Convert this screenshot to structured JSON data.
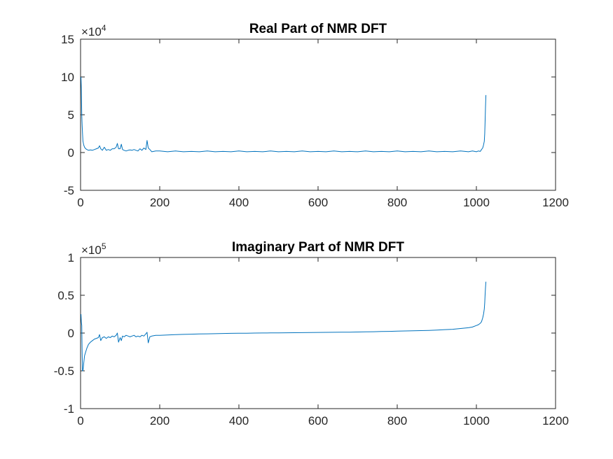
{
  "chart_data": [
    {
      "type": "line",
      "title": "Real Part of NMR DFT",
      "xlabel": "",
      "ylabel": "",
      "xlim": [
        0,
        1200
      ],
      "ylim": [
        -5,
        15
      ],
      "xticks": [
        0,
        200,
        400,
        600,
        800,
        1000,
        1200
      ],
      "yticks": [
        -5,
        0,
        5,
        10,
        15
      ],
      "exponent_base": "×10",
      "exponent_power": "4",
      "grid": false,
      "color": "#0072BD",
      "series": [
        {
          "x": [
            1,
            2,
            3,
            4,
            5,
            6,
            8,
            10,
            13,
            16,
            20,
            25,
            30,
            35,
            40,
            45,
            48,
            51,
            55,
            60,
            65,
            70,
            75,
            80,
            85,
            90,
            93,
            96,
            100,
            103,
            106,
            110,
            115,
            120,
            125,
            130,
            135,
            140,
            145,
            150,
            155,
            160,
            165,
            168,
            171,
            175,
            180,
            190,
            200,
            220,
            240,
            260,
            280,
            300,
            320,
            340,
            360,
            380,
            400,
            420,
            440,
            460,
            480,
            500,
            520,
            540,
            560,
            580,
            600,
            620,
            640,
            660,
            680,
            700,
            720,
            740,
            760,
            780,
            800,
            820,
            840,
            860,
            880,
            900,
            920,
            940,
            960,
            980,
            990,
            1000,
            1005,
            1010,
            1013,
            1016,
            1018,
            1020,
            1021,
            1022,
            1023,
            1024
          ],
          "y": [
            10,
            8.5,
            5,
            3.5,
            2.5,
            1.5,
            1,
            0.7,
            0.5,
            0.4,
            0.3,
            0.35,
            0.3,
            0.4,
            0.5,
            0.6,
            0.9,
            0.5,
            0.3,
            0.7,
            0.3,
            0.4,
            0.3,
            0.5,
            0.5,
            0.7,
            1.2,
            0.5,
            0.5,
            1.1,
            0.4,
            0.3,
            0.2,
            0.3,
            0.35,
            0.3,
            0.4,
            0.3,
            0.2,
            0.5,
            0.3,
            0.6,
            0.4,
            1.6,
            0.6,
            0.4,
            0.1,
            0.2,
            0.2,
            0.1,
            0.2,
            0.1,
            0.15,
            0.1,
            0.2,
            0.1,
            0.15,
            0.1,
            0.2,
            0.1,
            0.15,
            0.1,
            0.2,
            0.1,
            0.15,
            0.1,
            0.2,
            0.1,
            0.15,
            0.1,
            0.2,
            0.1,
            0.15,
            0.1,
            0.2,
            0.1,
            0.15,
            0.1,
            0.2,
            0.1,
            0.15,
            0.1,
            0.2,
            0.1,
            0.15,
            0.1,
            0.2,
            0.1,
            0.2,
            0.1,
            0.2,
            0.15,
            0.4,
            0.6,
            1.0,
            1.5,
            2.5,
            4.0,
            6.0,
            7.6
          ]
        }
      ]
    },
    {
      "type": "line",
      "title": "Imaginary Part of NMR DFT",
      "xlabel": "",
      "ylabel": "",
      "xlim": [
        0,
        1200
      ],
      "ylim": [
        -1,
        1
      ],
      "xticks": [
        0,
        200,
        400,
        600,
        800,
        1000,
        1200
      ],
      "yticks": [
        -1,
        -0.5,
        0,
        0.5,
        1
      ],
      "ytick_labels": [
        "-1",
        "-0.5",
        "0",
        "0.5",
        "1"
      ],
      "exponent_base": "×10",
      "exponent_power": "5",
      "grid": false,
      "color": "#0072BD",
      "series": [
        {
          "x": [
            1,
            2,
            3,
            4,
            5,
            6,
            8,
            10,
            13,
            16,
            20,
            25,
            30,
            35,
            40,
            45,
            48,
            51,
            55,
            60,
            65,
            70,
            75,
            80,
            85,
            90,
            93,
            96,
            100,
            103,
            106,
            110,
            115,
            120,
            125,
            130,
            135,
            140,
            145,
            150,
            155,
            160,
            165,
            168,
            171,
            175,
            180,
            190,
            200,
            220,
            240,
            260,
            280,
            300,
            320,
            340,
            360,
            380,
            400,
            420,
            440,
            460,
            480,
            500,
            520,
            540,
            560,
            580,
            600,
            620,
            640,
            660,
            680,
            700,
            720,
            740,
            760,
            780,
            800,
            820,
            840,
            860,
            880,
            900,
            920,
            940,
            960,
            980,
            990,
            1000,
            1005,
            1010,
            1013,
            1016,
            1018,
            1020,
            1021,
            1022,
            1023,
            1024
          ],
          "y": [
            0.25,
            0.15,
            0.1,
            -0.3,
            -0.5,
            -0.5,
            -0.4,
            -0.3,
            -0.25,
            -0.2,
            -0.15,
            -0.12,
            -0.1,
            -0.08,
            -0.07,
            -0.06,
            -0.02,
            -0.1,
            -0.06,
            -0.05,
            -0.07,
            -0.05,
            -0.06,
            -0.04,
            -0.05,
            -0.03,
            0.0,
            -0.12,
            -0.06,
            -0.1,
            -0.04,
            -0.05,
            -0.03,
            -0.04,
            -0.05,
            -0.04,
            -0.03,
            -0.05,
            -0.04,
            -0.05,
            -0.03,
            -0.04,
            -0.01,
            0.01,
            -0.13,
            -0.05,
            -0.04,
            -0.03,
            -0.03,
            -0.025,
            -0.02,
            -0.018,
            -0.015,
            -0.012,
            -0.01,
            -0.008,
            -0.006,
            -0.004,
            -0.003,
            -0.002,
            0.0,
            0.001,
            0.002,
            0.003,
            0.004,
            0.005,
            0.006,
            0.007,
            0.008,
            0.009,
            0.01,
            0.011,
            0.012,
            0.014,
            0.016,
            0.018,
            0.02,
            0.022,
            0.025,
            0.028,
            0.03,
            0.032,
            0.035,
            0.04,
            0.045,
            0.05,
            0.06,
            0.07,
            0.08,
            0.1,
            0.11,
            0.13,
            0.15,
            0.2,
            0.25,
            0.32,
            0.4,
            0.5,
            0.6,
            0.68
          ]
        }
      ]
    }
  ]
}
